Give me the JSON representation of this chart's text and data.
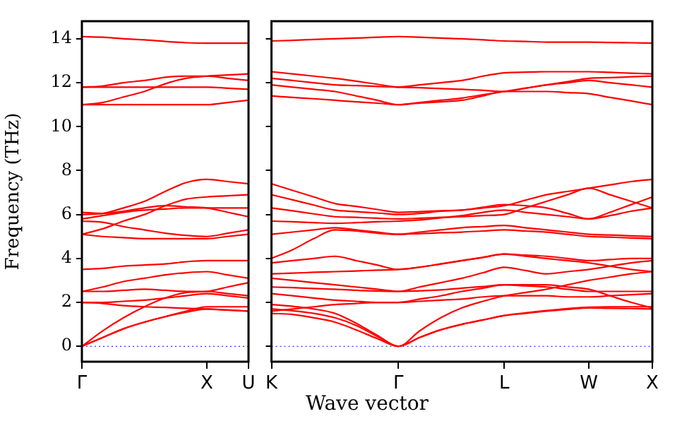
{
  "chart_data": [
    {
      "type": "line",
      "ylabel": "Frequency (THz)",
      "categories": [
        "Γ",
        null,
        null,
        null,
        null,
        null,
        "X",
        null,
        "U"
      ],
      "ylim": [
        -0.7,
        14.8
      ],
      "yticks": [
        0,
        2,
        4,
        6,
        8,
        10,
        12,
        14
      ],
      "grid": false,
      "line_style": "solid",
      "ref_lines": [
        {
          "axis": "y",
          "value": 0,
          "color": "#0000ff",
          "line_style": "dotted"
        }
      ],
      "series": [
        {
          "color": "#ff0000",
          "values": [
            0,
            0.4,
            0.8,
            1.1,
            1.35,
            1.55,
            1.7,
            1.65,
            1.6
          ]
        },
        {
          "color": "#ff0000",
          "values": [
            0,
            0.4,
            0.8,
            1.1,
            1.35,
            1.6,
            1.8,
            1.8,
            1.8
          ]
        },
        {
          "color": "#ff0000",
          "values": [
            0,
            0.7,
            1.3,
            1.8,
            2.2,
            2.45,
            2.5,
            2.7,
            2.9
          ]
        },
        {
          "color": "#ff0000",
          "values": [
            2.0,
            2.0,
            2.05,
            2.1,
            2.2,
            2.3,
            2.4,
            2.3,
            2.2
          ]
        },
        {
          "color": "#ff0000",
          "values": [
            2.0,
            1.95,
            1.85,
            1.8,
            1.77,
            1.73,
            1.7,
            1.65,
            1.6
          ]
        },
        {
          "color": "#ff0000",
          "values": [
            2.5,
            2.5,
            2.55,
            2.6,
            2.55,
            2.5,
            2.5,
            2.4,
            2.3
          ]
        },
        {
          "color": "#ff0000",
          "values": [
            2.5,
            2.7,
            2.95,
            3.1,
            3.25,
            3.35,
            3.4,
            3.25,
            3.1
          ]
        },
        {
          "color": "#ff0000",
          "values": [
            3.5,
            3.55,
            3.65,
            3.7,
            3.75,
            3.85,
            3.9,
            3.9,
            3.9
          ]
        },
        {
          "color": "#ff0000",
          "values": [
            5.1,
            5.35,
            5.7,
            6.0,
            6.4,
            6.7,
            6.8,
            6.85,
            6.9
          ]
        },
        {
          "color": "#ff0000",
          "values": [
            5.1,
            5.0,
            4.95,
            4.9,
            4.9,
            4.9,
            4.9,
            5.0,
            5.1
          ]
        },
        {
          "color": "#ff0000",
          "values": [
            5.7,
            5.65,
            5.45,
            5.3,
            5.15,
            5.05,
            5.0,
            5.15,
            5.3
          ]
        },
        {
          "color": "#ff0000",
          "values": [
            5.8,
            5.95,
            6.1,
            6.2,
            6.25,
            6.3,
            6.3,
            6.3,
            6.3
          ]
        },
        {
          "color": "#ff0000",
          "values": [
            6.0,
            6.05,
            6.3,
            6.6,
            7.05,
            7.45,
            7.6,
            7.5,
            7.4
          ]
        },
        {
          "color": "#ff0000",
          "values": [
            6.1,
            6.05,
            6.15,
            6.3,
            6.4,
            6.35,
            6.3,
            6.1,
            5.9
          ]
        },
        {
          "color": "#ff0000",
          "values": [
            11.0,
            11.0,
            11.0,
            11.0,
            11.0,
            11.0,
            11.0,
            11.1,
            11.2
          ]
        },
        {
          "color": "#ff0000",
          "values": [
            11.0,
            11.1,
            11.35,
            11.6,
            11.95,
            12.2,
            12.3,
            12.35,
            12.4
          ]
        },
        {
          "color": "#ff0000",
          "values": [
            11.8,
            11.8,
            11.8,
            11.8,
            11.8,
            11.8,
            11.8,
            11.75,
            11.7
          ]
        },
        {
          "color": "#ff0000",
          "values": [
            11.8,
            11.85,
            12.0,
            12.1,
            12.25,
            12.3,
            12.3,
            12.2,
            12.1
          ]
        },
        {
          "color": "#ff0000",
          "values": [
            14.1,
            14.07,
            14.0,
            13.95,
            13.88,
            13.82,
            13.8,
            13.8,
            13.8
          ]
        }
      ]
    },
    {
      "type": "line",
      "xlabel": "Wave vector",
      "categories": [
        "K",
        null,
        null,
        null,
        null,
        null,
        "Γ",
        null,
        null,
        null,
        null,
        "L",
        null,
        null,
        null,
        "W",
        null,
        null,
        "X"
      ],
      "ylim": [
        -0.7,
        14.8
      ],
      "yticks": [
        0,
        2,
        4,
        6,
        8,
        10,
        12,
        14
      ],
      "tick_labels": "x",
      "grid": false,
      "line_style": "solid",
      "ref_lines": [
        {
          "axis": "y",
          "value": 0,
          "color": "#0000ff",
          "line_style": "dotted"
        }
      ],
      "series": [
        {
          "color": "#ff0000",
          "values": [
            1.5,
            1.45,
            1.3,
            1.1,
            0.75,
            0.35,
            0,
            0.4,
            0.75,
            1.0,
            1.2,
            1.4,
            1.5,
            1.6,
            1.68,
            1.75,
            1.73,
            1.72,
            1.7
          ]
        },
        {
          "color": "#ff0000",
          "values": [
            1.9,
            1.82,
            1.7,
            1.5,
            1.05,
            0.5,
            0,
            0.4,
            0.75,
            1.0,
            1.2,
            1.4,
            1.52,
            1.63,
            1.72,
            1.78,
            1.8,
            1.8,
            1.8
          ]
        },
        {
          "color": "#ff0000",
          "values": [
            1.7,
            1.62,
            1.5,
            1.3,
            0.95,
            0.45,
            0,
            0.7,
            1.3,
            1.75,
            2.05,
            2.3,
            2.45,
            2.6,
            2.8,
            3.0,
            3.15,
            3.3,
            3.4
          ]
        },
        {
          "color": "#ff0000",
          "values": [
            1.6,
            1.7,
            1.8,
            1.9,
            1.95,
            2.0,
            2.0,
            2.05,
            2.1,
            2.15,
            2.25,
            2.3,
            2.3,
            2.3,
            2.25,
            2.25,
            2.3,
            2.35,
            2.4
          ]
        },
        {
          "color": "#ff0000",
          "values": [
            2.4,
            2.3,
            2.2,
            2.1,
            2.05,
            2.0,
            2.0,
            2.15,
            2.3,
            2.5,
            2.65,
            2.8,
            2.75,
            2.7,
            2.6,
            2.5,
            2.5,
            2.5,
            2.5
          ]
        },
        {
          "color": "#ff0000",
          "values": [
            2.7,
            2.67,
            2.63,
            2.6,
            2.55,
            2.52,
            2.5,
            2.53,
            2.57,
            2.65,
            2.72,
            2.8,
            2.8,
            2.8,
            2.7,
            2.6,
            2.3,
            2.0,
            1.75
          ]
        },
        {
          "color": "#ff0000",
          "values": [
            3.1,
            3.0,
            2.9,
            2.8,
            2.7,
            2.6,
            2.5,
            2.7,
            2.9,
            3.1,
            3.35,
            3.6,
            3.45,
            3.3,
            3.4,
            3.5,
            3.65,
            3.8,
            3.9
          ]
        },
        {
          "color": "#ff0000",
          "values": [
            3.3,
            3.33,
            3.37,
            3.4,
            3.43,
            3.47,
            3.5,
            3.6,
            3.75,
            3.9,
            4.05,
            4.2,
            4.15,
            4.1,
            4.0,
            3.9,
            3.95,
            4.0,
            4.0
          ]
        },
        {
          "color": "#ff0000",
          "values": [
            3.8,
            3.9,
            4.0,
            4.1,
            3.9,
            3.7,
            3.5,
            3.6,
            3.75,
            3.9,
            4.05,
            4.2,
            4.1,
            4.0,
            3.9,
            3.8,
            3.65,
            3.5,
            3.4
          ]
        },
        {
          "color": "#ff0000",
          "values": [
            4.0,
            4.4,
            4.9,
            5.3,
            5.25,
            5.15,
            5.1,
            5.13,
            5.17,
            5.2,
            5.25,
            5.3,
            5.25,
            5.2,
            5.1,
            5.0,
            4.97,
            4.93,
            4.9
          ]
        },
        {
          "color": "#ff0000",
          "values": [
            5.1,
            5.2,
            5.3,
            5.4,
            5.3,
            5.2,
            5.1,
            5.2,
            5.3,
            5.4,
            5.45,
            5.5,
            5.4,
            5.3,
            5.2,
            5.1,
            5.07,
            5.03,
            5.0
          ]
        },
        {
          "color": "#ff0000",
          "values": [
            5.7,
            5.67,
            5.63,
            5.6,
            5.63,
            5.67,
            5.7,
            5.75,
            5.85,
            5.95,
            6.1,
            6.2,
            6.1,
            6.0,
            5.9,
            5.8,
            5.95,
            6.15,
            6.3
          ]
        },
        {
          "color": "#ff0000",
          "values": [
            6.3,
            6.17,
            6.03,
            5.9,
            5.87,
            5.83,
            5.8,
            5.83,
            5.87,
            5.9,
            5.95,
            6.0,
            6.3,
            6.6,
            6.9,
            7.2,
            6.9,
            6.6,
            6.3
          ]
        },
        {
          "color": "#ff0000",
          "values": [
            6.9,
            6.67,
            6.43,
            6.2,
            6.13,
            6.07,
            6.0,
            6.05,
            6.15,
            6.2,
            6.3,
            6.4,
            6.65,
            6.9,
            7.05,
            7.2,
            7.35,
            7.5,
            7.6
          ]
        },
        {
          "color": "#ff0000",
          "values": [
            7.4,
            7.1,
            6.8,
            6.5,
            6.37,
            6.23,
            6.1,
            6.13,
            6.17,
            6.2,
            6.33,
            6.45,
            6.4,
            6.3,
            6.05,
            5.8,
            6.1,
            6.45,
            6.8
          ]
        },
        {
          "color": "#ff0000",
          "values": [
            13.9,
            13.93,
            13.97,
            14.0,
            14.03,
            14.07,
            14.1,
            14.07,
            14.03,
            14.0,
            13.95,
            13.9,
            13.88,
            13.85,
            13.85,
            13.85,
            13.83,
            13.82,
            13.8
          ]
        },
        {
          "color": "#ff0000",
          "values": [
            12.5,
            12.4,
            12.3,
            12.2,
            12.07,
            11.93,
            11.8,
            11.9,
            12.0,
            12.1,
            12.3,
            12.45,
            12.48,
            12.5,
            12.5,
            12.5,
            12.47,
            12.43,
            12.4
          ]
        },
        {
          "color": "#ff0000",
          "values": [
            12.2,
            12.1,
            12.0,
            11.9,
            11.87,
            11.83,
            11.8,
            11.77,
            11.73,
            11.7,
            11.65,
            11.6,
            11.75,
            11.9,
            12.05,
            12.2,
            12.23,
            12.27,
            12.3
          ]
        },
        {
          "color": "#ff0000",
          "values": [
            11.9,
            11.8,
            11.7,
            11.6,
            11.4,
            11.2,
            11.0,
            11.07,
            11.13,
            11.2,
            11.4,
            11.6,
            11.6,
            11.6,
            11.55,
            11.5,
            11.33,
            11.17,
            11.0
          ]
        },
        {
          "color": "#ff0000",
          "values": [
            11.4,
            11.33,
            11.27,
            11.2,
            11.13,
            11.07,
            11.0,
            11.1,
            11.2,
            11.3,
            11.45,
            11.6,
            11.75,
            11.9,
            12.0,
            12.1,
            12.0,
            11.9,
            11.8
          ]
        }
      ]
    }
  ]
}
